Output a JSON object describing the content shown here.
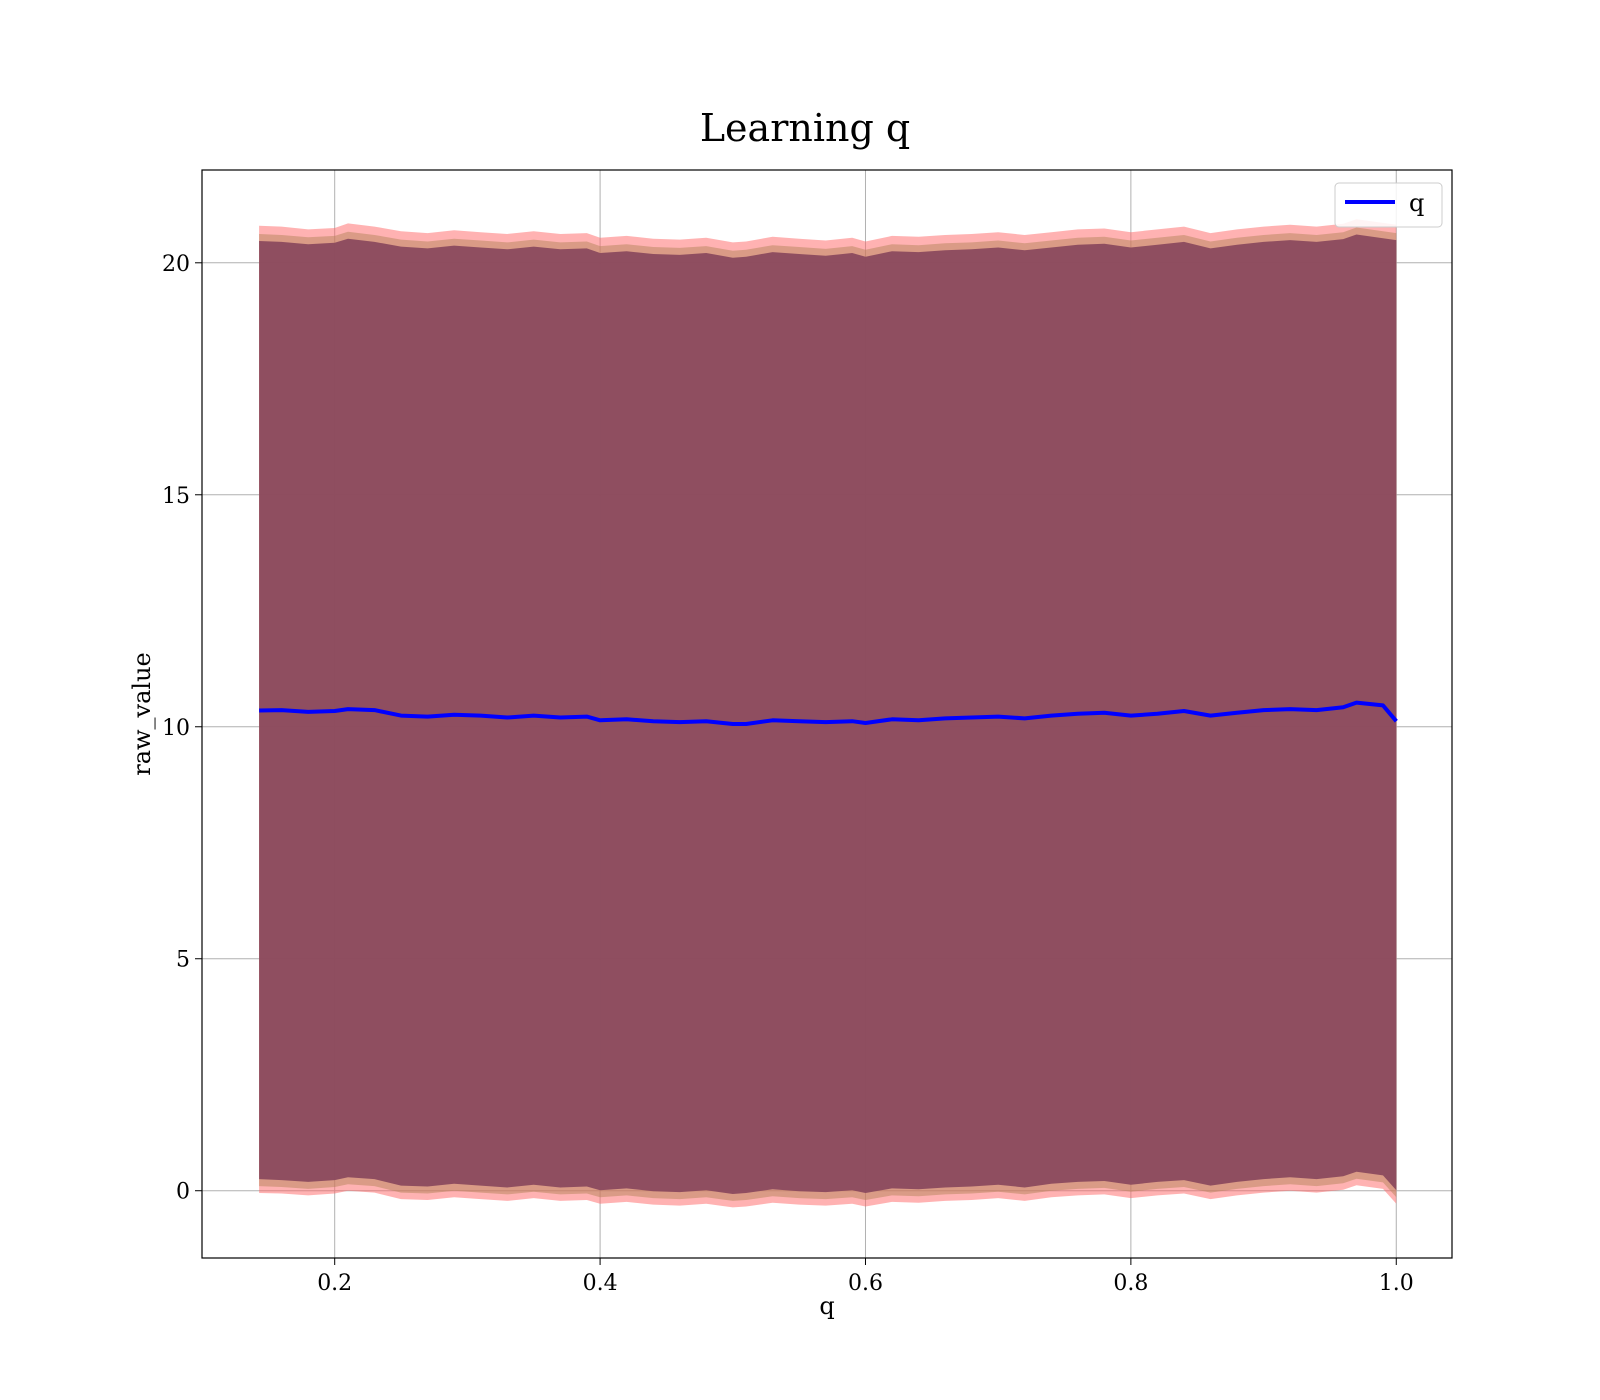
{
  "chart_data": {
    "type": "line",
    "title": "Learning q",
    "xlabel": "q",
    "ylabel": "raw_value",
    "xlim": [
      0.1,
      1.042
    ],
    "ylim": [
      -1.45,
      22.0
    ],
    "xticks": [
      0.2,
      0.4,
      0.6,
      0.8,
      1.0
    ],
    "xtick_labels": [
      "0.2",
      "0.4",
      "0.6",
      "0.8",
      "1.0"
    ],
    "yticks": [
      0,
      5,
      10,
      15,
      20
    ],
    "ytick_labels": [
      "0",
      "5",
      "10",
      "15",
      "20"
    ],
    "grid": true,
    "legend_position": "top-right",
    "series": [
      {
        "name": "q",
        "color": "#0000ff",
        "x": [
          0.143,
          0.16,
          0.18,
          0.2,
          0.21,
          0.23,
          0.25,
          0.27,
          0.29,
          0.31,
          0.33,
          0.35,
          0.37,
          0.39,
          0.4,
          0.42,
          0.44,
          0.46,
          0.48,
          0.5,
          0.51,
          0.53,
          0.55,
          0.57,
          0.59,
          0.6,
          0.62,
          0.64,
          0.66,
          0.68,
          0.7,
          0.72,
          0.74,
          0.76,
          0.78,
          0.8,
          0.82,
          0.84,
          0.86,
          0.88,
          0.9,
          0.92,
          0.94,
          0.96,
          0.97,
          0.99,
          1.0
        ],
        "y": [
          10.35,
          10.36,
          10.32,
          10.34,
          10.38,
          10.36,
          10.24,
          10.22,
          10.26,
          10.24,
          10.2,
          10.24,
          10.2,
          10.22,
          10.14,
          10.16,
          10.12,
          10.1,
          10.12,
          10.06,
          10.06,
          10.14,
          10.12,
          10.1,
          10.12,
          10.08,
          10.16,
          10.14,
          10.18,
          10.2,
          10.22,
          10.18,
          10.24,
          10.28,
          10.3,
          10.24,
          10.28,
          10.34,
          10.24,
          10.3,
          10.36,
          10.38,
          10.36,
          10.42,
          10.52,
          10.46,
          10.12
        ]
      }
    ],
    "bands": [
      {
        "color": "#ff6666",
        "upper": [
          20.8,
          20.78,
          20.72,
          20.75,
          20.85,
          20.78,
          20.68,
          20.64,
          20.7,
          20.66,
          20.62,
          20.68,
          20.62,
          20.64,
          20.54,
          20.58,
          20.52,
          20.5,
          20.54,
          20.44,
          20.46,
          20.56,
          20.52,
          20.48,
          20.54,
          20.46,
          20.58,
          20.56,
          20.6,
          20.62,
          20.66,
          20.6,
          20.66,
          20.72,
          20.74,
          20.66,
          20.72,
          20.78,
          20.64,
          20.72,
          20.78,
          20.82,
          20.78,
          20.84,
          20.94,
          20.86,
          20.82
        ],
        "lower": [
          -0.05,
          -0.06,
          -0.1,
          -0.06,
          0.0,
          -0.04,
          -0.18,
          -0.2,
          -0.14,
          -0.18,
          -0.22,
          -0.16,
          -0.22,
          -0.2,
          -0.28,
          -0.24,
          -0.3,
          -0.32,
          -0.28,
          -0.36,
          -0.34,
          -0.26,
          -0.3,
          -0.32,
          -0.28,
          -0.34,
          -0.24,
          -0.26,
          -0.22,
          -0.2,
          -0.16,
          -0.22,
          -0.14,
          -0.1,
          -0.08,
          -0.16,
          -0.1,
          -0.06,
          -0.18,
          -0.1,
          -0.04,
          0.0,
          -0.04,
          0.02,
          0.12,
          0.04,
          -0.28
        ]
      },
      {
        "color": "#b5835a",
        "upper": [
          20.62,
          20.6,
          20.55,
          20.58,
          20.67,
          20.6,
          20.5,
          20.46,
          20.52,
          20.48,
          20.44,
          20.5,
          20.44,
          20.46,
          20.36,
          20.4,
          20.34,
          20.32,
          20.36,
          20.26,
          20.28,
          20.38,
          20.34,
          20.3,
          20.36,
          20.28,
          20.4,
          20.38,
          20.42,
          20.44,
          20.48,
          20.42,
          20.48,
          20.54,
          20.56,
          20.48,
          20.54,
          20.6,
          20.46,
          20.54,
          20.6,
          20.64,
          20.6,
          20.66,
          20.76,
          20.68,
          20.64
        ],
        "lower": [
          0.1,
          0.08,
          0.04,
          0.08,
          0.14,
          0.1,
          -0.04,
          -0.06,
          0.0,
          -0.04,
          -0.08,
          -0.02,
          -0.08,
          -0.06,
          -0.14,
          -0.1,
          -0.16,
          -0.18,
          -0.14,
          -0.22,
          -0.2,
          -0.12,
          -0.16,
          -0.18,
          -0.14,
          -0.2,
          -0.1,
          -0.12,
          -0.08,
          -0.06,
          -0.02,
          -0.08,
          0.0,
          0.04,
          0.06,
          -0.02,
          0.04,
          0.08,
          -0.04,
          0.04,
          0.1,
          0.14,
          0.1,
          0.16,
          0.26,
          0.18,
          -0.14
        ]
      },
      {
        "color": "#8b4a5e",
        "upper": [
          20.47,
          20.45,
          20.4,
          20.43,
          20.52,
          20.45,
          20.35,
          20.31,
          20.37,
          20.33,
          20.29,
          20.35,
          20.29,
          20.31,
          20.21,
          20.25,
          20.19,
          20.17,
          20.21,
          20.11,
          20.13,
          20.23,
          20.19,
          20.15,
          20.21,
          20.13,
          20.25,
          20.23,
          20.27,
          20.29,
          20.33,
          20.27,
          20.33,
          20.39,
          20.41,
          20.33,
          20.39,
          20.45,
          20.31,
          20.39,
          20.45,
          20.49,
          20.45,
          20.51,
          20.61,
          20.53,
          20.49
        ],
        "lower": [
          0.25,
          0.23,
          0.19,
          0.23,
          0.29,
          0.25,
          0.11,
          0.09,
          0.15,
          0.11,
          0.07,
          0.13,
          0.07,
          0.09,
          0.01,
          0.05,
          -0.01,
          -0.03,
          0.01,
          -0.07,
          -0.05,
          0.03,
          -0.01,
          -0.03,
          0.01,
          -0.05,
          0.05,
          0.03,
          0.07,
          0.09,
          0.13,
          0.07,
          0.15,
          0.19,
          0.21,
          0.13,
          0.19,
          0.23,
          0.11,
          0.19,
          0.25,
          0.29,
          0.25,
          0.31,
          0.41,
          0.33,
          0.01
        ]
      }
    ]
  }
}
